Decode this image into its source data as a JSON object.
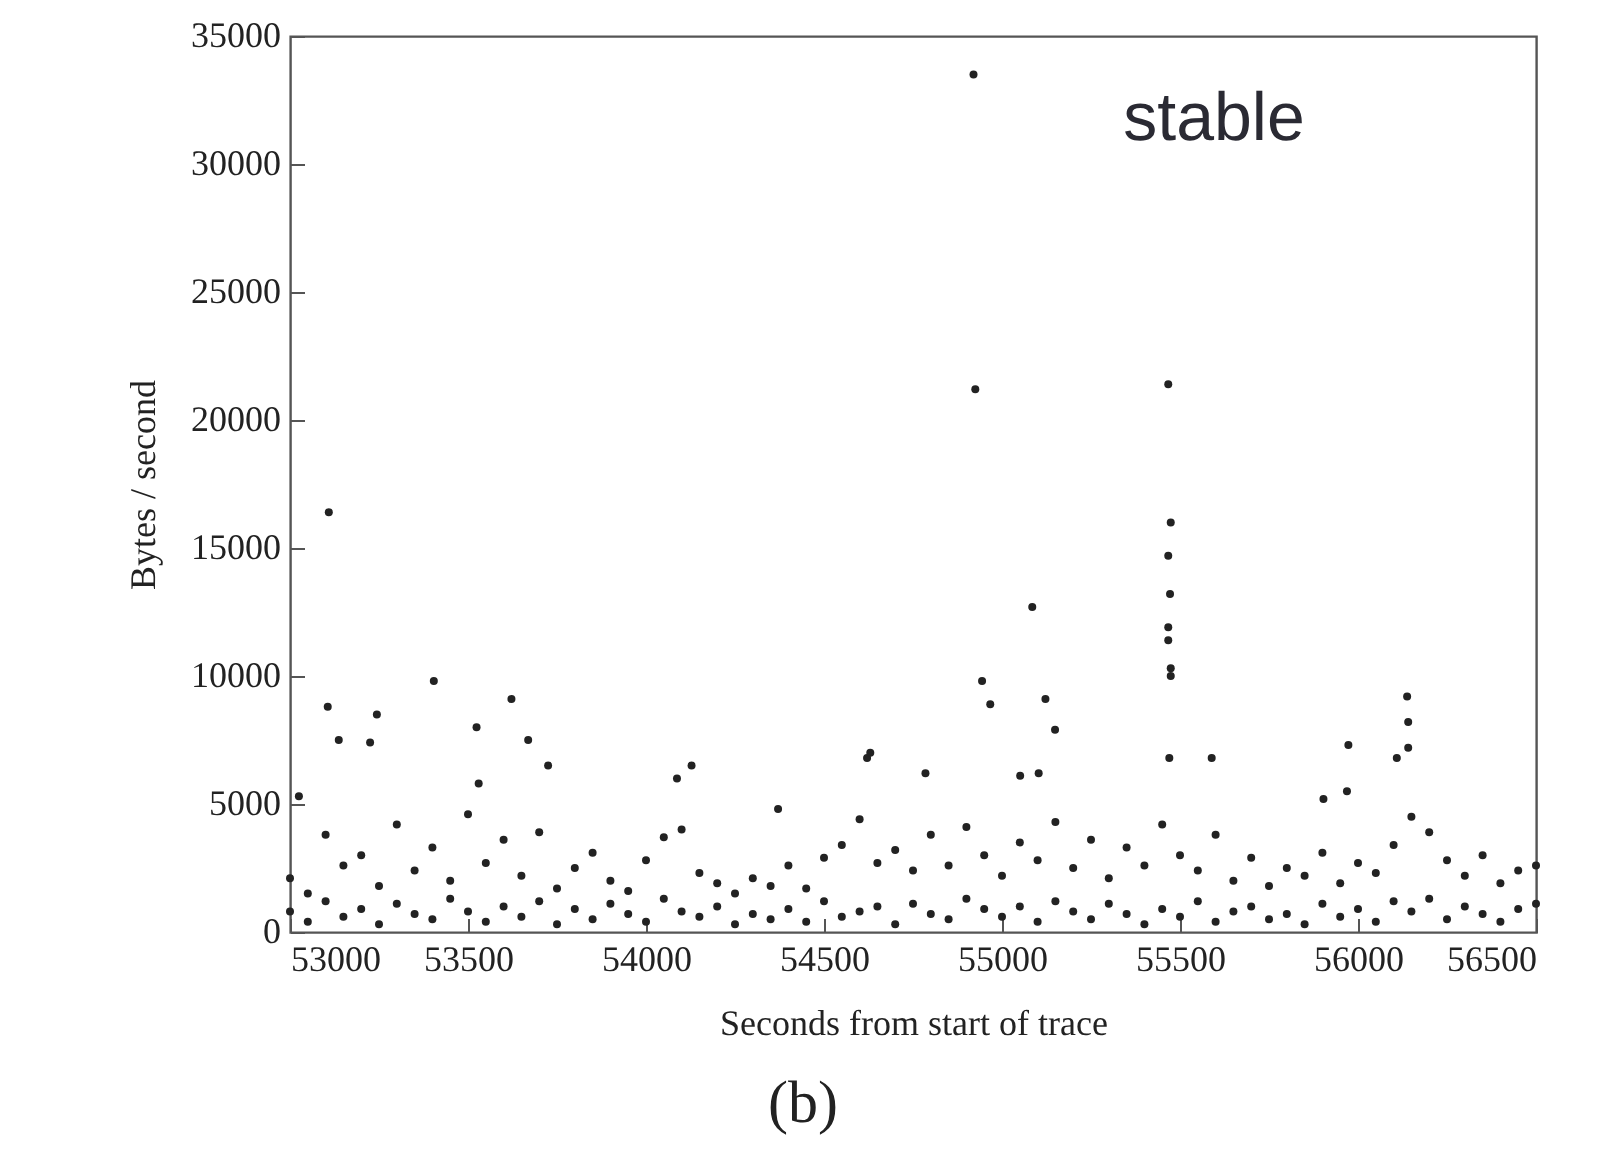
{
  "chart_data": {
    "type": "scatter",
    "xlabel": "Seconds from start of trace",
    "ylabel": "Bytes / second",
    "annotations": [
      "stable",
      "(b)"
    ],
    "xlim": [
      53000,
      56500
    ],
    "xticks": [
      53000,
      53500,
      54000,
      54500,
      55000,
      55500,
      56000,
      56500
    ],
    "ylim": [
      0,
      35000
    ],
    "yticks": [
      0,
      5000,
      10000,
      15000,
      20000,
      25000,
      30000,
      35000
    ],
    "grid": false,
    "marker": "circle",
    "series": [
      {
        "color": "#222222",
        "x": [
          53000,
          53050,
          53100,
          53150,
          53200,
          53250,
          53300,
          53350,
          53400,
          53450,
          53500,
          53550,
          53600,
          53650,
          53700,
          53750,
          53800,
          53850,
          53900,
          53950,
          54000,
          54050,
          54100,
          54150,
          54200,
          54250,
          54300,
          54350,
          54400,
          54450,
          54500,
          54550,
          54600,
          54650,
          54700,
          54750,
          54800,
          54850,
          54900,
          54950,
          55000,
          55050,
          55100,
          55150,
          55200,
          55250,
          55300,
          55350,
          55400,
          55450,
          55500,
          55550,
          55600,
          55650,
          55700,
          55750,
          55800,
          55850,
          55900,
          55950,
          56000,
          56050,
          56100,
          56150,
          56200,
          56250,
          56300,
          56350,
          56400,
          56450,
          56500
        ],
        "values": [
          800,
          400,
          1200,
          600,
          900,
          300,
          1100,
          700,
          500,
          1300,
          800,
          400,
          1000,
          600,
          1200,
          300,
          900,
          500,
          1100,
          700,
          400,
          1300,
          800,
          600,
          1000,
          300,
          700,
          500,
          900,
          400,
          1200,
          600,
          800,
          1000,
          300,
          1100,
          700,
          500,
          1300,
          900,
          600,
          1000,
          400,
          1200,
          800,
          500,
          1100,
          700,
          300,
          900,
          600,
          1200,
          400,
          800,
          1000,
          500,
          700,
          300,
          1100,
          600,
          900,
          400,
          1200,
          800,
          1300,
          500,
          1000,
          700,
          400,
          900,
          1100
        ]
      },
      {
        "color": "#222222",
        "x": [
          53000,
          53050,
          53100,
          53150,
          53200,
          53250,
          53300,
          53350,
          53400,
          53450,
          53500,
          53550,
          53600,
          53650,
          53700,
          53750,
          53800,
          53850,
          53900,
          53950,
          54000,
          54050,
          54100,
          54150,
          54200,
          54250,
          54300,
          54350,
          54400,
          54450,
          54500,
          54550,
          54600,
          54650,
          54700,
          54750,
          54800,
          54850,
          54900,
          54950,
          55000,
          55050,
          55100,
          55150,
          55200,
          55250,
          55300,
          55350,
          55400,
          55450,
          55500,
          55550,
          55600,
          55650,
          55700,
          55750,
          55800,
          55850,
          55900,
          55950,
          56000,
          56050,
          56100,
          56150,
          56200,
          56250,
          56300,
          56350,
          56400,
          56450,
          56500
        ],
        "values": [
          2100,
          1500,
          3800,
          2600,
          3000,
          1800,
          4200,
          2400,
          3300,
          2000,
          4600,
          2700,
          3600,
          2200,
          3900,
          1700,
          2500,
          3100,
          2000,
          1600,
          2800,
          3700,
          4000,
          2300,
          1900,
          1500,
          2100,
          1800,
          2600,
          1700,
          2900,
          3400,
          4400,
          2700,
          3200,
          2400,
          3800,
          2600,
          4100,
          3000,
          2200,
          3500,
          2800,
          4300,
          2500,
          3600,
          2100,
          3300,
          2600,
          4200,
          3000,
          2400,
          3800,
          2000,
          2900,
          1800,
          2500,
          2200,
          3100,
          1900,
          2700,
          2300,
          3400,
          4500,
          3900,
          2800,
          2200,
          3000,
          1900,
          2400,
          2600
        ]
      },
      {
        "color": "#222222",
        "x": [
          53109,
          53025,
          53106,
          53137,
          53225,
          53244,
          53404,
          53524,
          53622,
          53669,
          53725,
          54087,
          54128,
          54621,
          53530,
          54371,
          54920,
          54925,
          55467,
          55474,
          55467,
          55472,
          55467,
          55467,
          55474,
          55474,
          55085,
          54944,
          54967,
          55122,
          55149,
          56138,
          56141,
          56141,
          56109,
          55973,
          55589,
          55470,
          54630,
          54785,
          55051,
          55103,
          55903,
          55969
        ],
        "values": [
          16400,
          5300,
          8800,
          7500,
          7400,
          8500,
          9800,
          8000,
          9100,
          7500,
          6500,
          6000,
          6500,
          6800,
          5800,
          4800,
          33500,
          21200,
          21400,
          16000,
          14700,
          13200,
          11900,
          11400,
          10300,
          10000,
          12700,
          9800,
          8900,
          9100,
          7900,
          9200,
          8200,
          7200,
          6800,
          7300,
          6800,
          6800,
          7000,
          6200,
          6100,
          6200,
          5200,
          5500
        ]
      }
    ]
  }
}
